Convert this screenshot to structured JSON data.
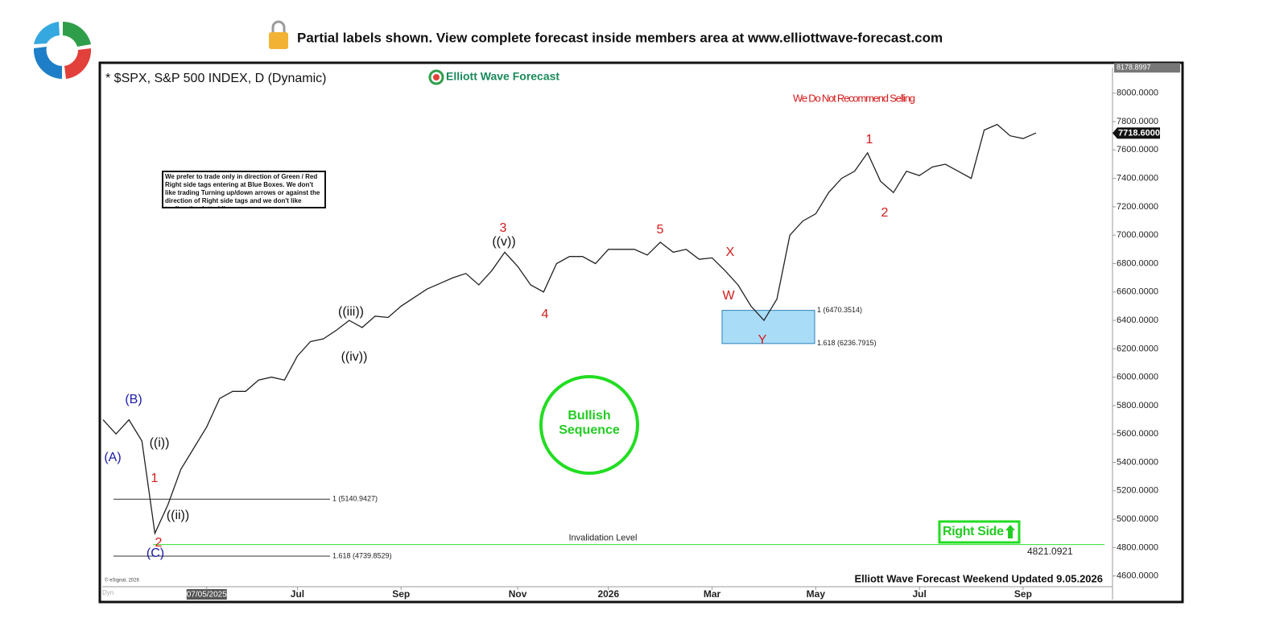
{
  "header": {
    "text": "Partial labels shown. View complete forecast inside members area at www.elliottwave-forecast.com"
  },
  "chart_data": {
    "type": "line",
    "title": "* $SPX, S&P 500 INDEX, D (Dynamic)",
    "brand": "Elliott Wave Forecast",
    "warning": "We Do Not Recommend Selling",
    "note": "We prefer to trade only in direction of Green / Red Right side tags entering at Blue Boxes. We don't like trading Turning up/down arrows or against the direction of Right side tags and we don't like trading the dotted lines.",
    "badge": [
      "Bullish",
      "Sequence"
    ],
    "right_side": "Right Side",
    "footer": "Elliott Wave Forecast Weekend Updated 9.05.2026",
    "copyright": "© eSignal, 2026",
    "dyn": "Dyn",
    "categories": [
      null,
      null,
      null,
      null,
      null,
      null,
      null,
      null,
      "07/05/2025",
      null,
      null,
      null,
      null,
      null,
      null,
      "Jul",
      null,
      null,
      null,
      null,
      null,
      null,
      null,
      "Sep",
      null,
      null,
      null,
      null,
      null,
      null,
      null,
      null,
      "Nov",
      null,
      null,
      null,
      null,
      null,
      null,
      "2026",
      null,
      null,
      null,
      null,
      null,
      null,
      null,
      "Mar",
      null,
      null,
      null,
      null,
      null,
      null,
      null,
      "May",
      null,
      null,
      null,
      null,
      null,
      null,
      null,
      "Jul",
      null,
      null,
      null,
      null,
      null,
      null,
      null,
      "Sep",
      null
    ],
    "series": [
      {
        "name": "$SPX",
        "color": "#222222",
        "values": [
          5700,
          5600,
          5700,
          5550,
          4900,
          5100,
          5350,
          5500,
          5650,
          5850,
          5900,
          5900,
          5980,
          6000,
          5980,
          6150,
          6250,
          6270,
          6330,
          6400,
          6350,
          6430,
          6420,
          6500,
          6560,
          6620,
          6660,
          6700,
          6730,
          6650,
          6750,
          6880,
          6780,
          6650,
          6600,
          6800,
          6850,
          6850,
          6800,
          6900,
          6900,
          6900,
          6860,
          6950,
          6880,
          6900,
          6830,
          6840,
          6750,
          6650,
          6500,
          6400,
          6550,
          7000,
          7100,
          7150,
          7300,
          7400,
          7450,
          7580,
          7380,
          7300,
          7450,
          7420,
          7480,
          7500,
          7450,
          7400,
          7740,
          7780,
          7700,
          7680,
          7720
        ]
      }
    ],
    "ylim": [
      4530,
      8180
    ],
    "yticks": [
      {
        "value": 4600,
        "label": "4600.0000"
      },
      {
        "value": 4800,
        "label": "4800.0000"
      },
      {
        "value": 5000,
        "label": "5000.0000"
      },
      {
        "value": 5200,
        "label": "5200.0000"
      },
      {
        "value": 5400,
        "label": "5400.0000"
      },
      {
        "value": 5600,
        "label": "5600.0000"
      },
      {
        "value": 5800,
        "label": "5800.0000"
      },
      {
        "value": 6000,
        "label": "6000.0000"
      },
      {
        "value": 6200,
        "label": "6200.0000"
      },
      {
        "value": 6400,
        "label": "6400.0000"
      },
      {
        "value": 6600,
        "label": "6600.0000"
      },
      {
        "value": 6800,
        "label": "6800.0000"
      },
      {
        "value": 7000,
        "label": "7000.0000"
      },
      {
        "value": 7200,
        "label": "7200.0000"
      },
      {
        "value": 7400,
        "label": "7400.0000"
      },
      {
        "value": 7600,
        "label": "7600.0000"
      },
      {
        "value": 7800,
        "label": "7800.0000"
      },
      {
        "value": 8000,
        "label": "8000.0000"
      }
    ],
    "high_tag": 8178.8997,
    "last_price": {
      "value": 7718.6,
      "label": "7718.6000"
    },
    "levels": [
      {
        "label": "1 (5140.9427)",
        "value": 5140.9427
      },
      {
        "label": "1.618 (4739.8529)",
        "value": 4739.8529
      },
      {
        "label": "1 (6470.3514)",
        "value": 6470.3514
      },
      {
        "label": "1.618 (6236.7915)",
        "value": 6236.7915
      }
    ],
    "invalidation": {
      "label": "Invalidation Level",
      "value": 4821.0921
    },
    "wave_labels": [
      {
        "text": "(A)",
        "color": "#1a1aa8"
      },
      {
        "text": "(B)",
        "color": "#1a1aa8"
      },
      {
        "text": "(C)",
        "color": "#1a1aa8"
      },
      {
        "text": "1",
        "color": "#d41a1a"
      },
      {
        "text": "2",
        "color": "#d41a1a"
      },
      {
        "text": "((i))",
        "color": "#111111"
      },
      {
        "text": "((ii))",
        "color": "#111111"
      },
      {
        "text": "((iii))",
        "color": "#111111"
      },
      {
        "text": "((iv))",
        "color": "#111111"
      },
      {
        "text": "((v))",
        "color": "#111111"
      },
      {
        "text": "3",
        "color": "#d41a1a"
      },
      {
        "text": "4",
        "color": "#d41a1a"
      },
      {
        "text": "5",
        "color": "#d41a1a"
      },
      {
        "text": "W",
        "color": "#d41a1a"
      },
      {
        "text": "X",
        "color": "#d41a1a"
      },
      {
        "text": "Y",
        "color": "#d41a1a"
      },
      {
        "text": "1",
        "color": "#d41a1a"
      },
      {
        "text": "2",
        "color": "#d41a1a"
      }
    ]
  }
}
